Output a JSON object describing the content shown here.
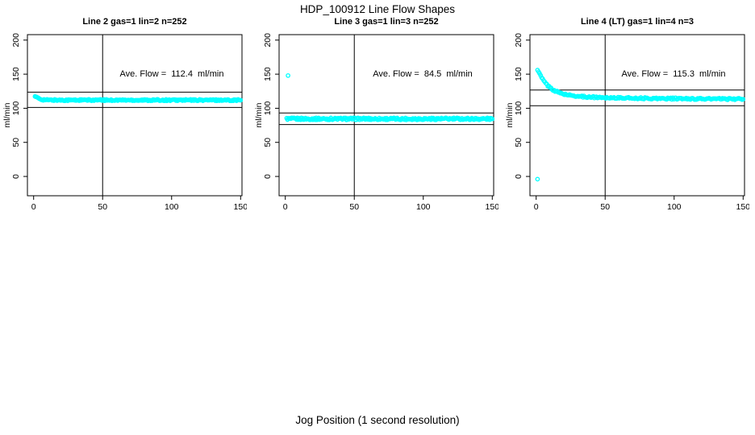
{
  "figure": {
    "title": "HDP_100912  Line Flow Shapes",
    "xlabel": "Jog Position (1 second resolution)",
    "background": "#ffffff",
    "line_color": "#000000"
  },
  "chart_data": [
    {
      "type": "scatter",
      "title": "Line 2 gas=1 lin=2 n=252",
      "annotation": "Ave. Flow =  112.4  ml/min",
      "ave_flow_ml_min": 112.4,
      "n": 252,
      "ylabel": "ml/min",
      "x_ticks": [
        0,
        50,
        100,
        150
      ],
      "y_ticks": [
        0,
        50,
        100,
        150,
        200
      ],
      "xlim": [
        -4.5,
        151
      ],
      "ylim": [
        -28.3,
        208
      ],
      "grid": false,
      "vline_x": 50,
      "hlines": [
        123.6,
        101.2
      ],
      "marker": {
        "shape": "open-circle",
        "color": "#00FFFF",
        "size": 2.2
      },
      "outliers": [],
      "series_profile": {
        "x_start": 1,
        "x_end": 150,
        "n_points": 252,
        "plateau": 112.0,
        "fast_amp": 6.5,
        "fast_tau": 2.5,
        "slow_amp": 0,
        "slow_tau": 1,
        "jitter": 1.1
      },
      "shape_description": "flat cyan band near 112 ml/min, brief settle from ~118 over first few positions"
    },
    {
      "type": "scatter",
      "title": "Line 3 gas=1 lin=3 n=252",
      "annotation": "Ave. Flow =  84.5  ml/min",
      "ave_flow_ml_min": 84.5,
      "n": 252,
      "ylabel": "ml/min",
      "x_ticks": [
        0,
        50,
        100,
        150
      ],
      "y_ticks": [
        0,
        50,
        100,
        150,
        200
      ],
      "xlim": [
        -4.5,
        151
      ],
      "ylim": [
        -28.3,
        208
      ],
      "grid": false,
      "vline_x": 50,
      "hlines": [
        93.0,
        76.1
      ],
      "marker": {
        "shape": "open-circle",
        "color": "#00FFFF",
        "size": 2.2
      },
      "outliers": [
        [
          2,
          148
        ]
      ],
      "series_profile": {
        "x_start": 1,
        "x_end": 150,
        "n_points": 252,
        "plateau": 84.5,
        "fast_amp": 0,
        "fast_tau": 1,
        "slow_amp": 0,
        "slow_tau": 1,
        "jitter": 1.5
      },
      "shape_description": "flat cyan band at ~84.5 ml/min across full range, single outlier point near (2, 148)"
    },
    {
      "type": "scatter",
      "title": "Line 4 (LT) gas=1 lin=4 n=3",
      "annotation": "Ave. Flow =  115.3  ml/min",
      "ave_flow_ml_min": 115.3,
      "n": 3,
      "ylabel": "ml/min",
      "x_ticks": [
        0,
        50,
        100,
        150
      ],
      "y_ticks": [
        0,
        50,
        100,
        150,
        200
      ],
      "xlim": [
        -4.5,
        151
      ],
      "ylim": [
        -28.3,
        208
      ],
      "grid": false,
      "vline_x": 50,
      "hlines": [
        126.8,
        103.8
      ],
      "marker": {
        "shape": "open-circle",
        "color": "#00FFFF",
        "size": 2.2
      },
      "outliers": [
        [
          1,
          -4
        ]
      ],
      "series_profile": {
        "x_start": 1,
        "x_end": 150,
        "n_points": 200,
        "plateau": 113.0,
        "fast_amp": 38,
        "fast_tau": 8,
        "slow_amp": 6,
        "slow_tau": 60,
        "jitter": 1.2
      },
      "shape_description": "exponential decay from ~157 at start down to ~113 plateau, single outlier near (1, -4)"
    }
  ]
}
